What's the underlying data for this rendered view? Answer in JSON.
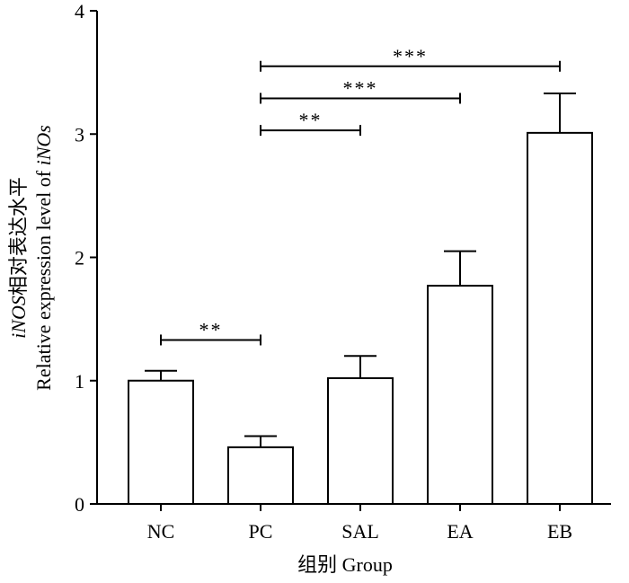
{
  "chart_data": {
    "type": "bar",
    "categories": [
      "NC",
      "PC",
      "SAL",
      "EA",
      "EB"
    ],
    "values": [
      1.0,
      0.46,
      1.02,
      1.77,
      3.01
    ],
    "error": [
      0.08,
      0.09,
      0.18,
      0.28,
      0.32
    ],
    "ylim": [
      0,
      4
    ],
    "yticks": [
      "0",
      "1",
      "2",
      "3",
      "4"
    ],
    "xlabel": "组别  Group",
    "ylabel_line1_italic": "iNOS",
    "ylabel_line1_rest": "相对表达水平",
    "ylabel_line2_prefix": "Relative expression level of ",
    "ylabel_line2_italic": "iNOs",
    "significance": [
      {
        "from": "NC",
        "to": "PC",
        "label": "**",
        "y": 1.33
      },
      {
        "from": "PC",
        "to": "SAL",
        "label": "**",
        "y": 3.03
      },
      {
        "from": "PC",
        "to": "EA",
        "label": "***",
        "y": 3.29
      },
      {
        "from": "PC",
        "to": "EB",
        "label": "***",
        "y": 3.55
      }
    ]
  }
}
